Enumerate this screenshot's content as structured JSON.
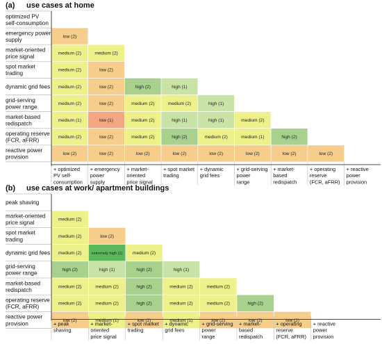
{
  "colors": {
    "extremely high": "#5cb85c",
    "high": "#a8d18d",
    "high-light": "#c9e3a6",
    "medium": "#eef08a",
    "low": "#f7cd8c",
    "low-red": "#f4a582",
    "grid": "#bbbbbb",
    "axis": "#333333"
  },
  "chart_data": [
    {
      "type": "table",
      "panel": "(a)",
      "title": "use cases at home",
      "rows": [
        "optimized PV\nself-consumption",
        "emergency power\nsupply",
        "market-oriented\nprice signal",
        "spot market\ntrading",
        "dynamic grid fees",
        "grid-serving\npower range",
        "market-based\nredispatch",
        "operating reserve\n(FCR, aFRR)",
        "reactive power\nprovision"
      ],
      "columns": [
        "+ optimized\nPV self-\nconsumption",
        "+ emergency\npower\nsupply",
        "+ market-\noriented\nprice signal",
        "+ spot market\ntrading",
        "+ dynamic\ngrid fees",
        "+ grid-serving\npower\nrange",
        "+ market-\nbased\nredispatch",
        "+ operating\nreserve\n(FCR, aFRR)",
        "+ reactive\npower\nprovision"
      ],
      "cells": [
        [],
        [
          {
            "label": "low (2)",
            "level": "low"
          }
        ],
        [
          {
            "label": "medium (2)",
            "level": "medium"
          },
          {
            "label": "medium (2)",
            "level": "medium"
          }
        ],
        [
          {
            "label": "medium (2)",
            "level": "medium"
          },
          {
            "label": "low (2)",
            "level": "low"
          }
        ],
        [
          {
            "label": "medium (2)",
            "level": "medium"
          },
          {
            "label": "low (2)",
            "level": "low"
          },
          {
            "label": "high (2)",
            "level": "high"
          },
          {
            "label": "high (1)",
            "level": "high-light"
          }
        ],
        [
          {
            "label": "medium (2)",
            "level": "medium"
          },
          {
            "label": "low (2)",
            "level": "low"
          },
          {
            "label": "medium (2)",
            "level": "medium"
          },
          {
            "label": "medium (2)",
            "level": "medium"
          },
          {
            "label": "high (1)",
            "level": "high-light"
          }
        ],
        [
          {
            "label": "medium (1)",
            "level": "medium"
          },
          {
            "label": "low (1)",
            "level": "low-red"
          },
          {
            "label": "medium (2)",
            "level": "medium"
          },
          {
            "label": "high (1)",
            "level": "high-light"
          },
          {
            "label": "high (1)",
            "level": "high-light"
          },
          {
            "label": "medium (2)",
            "level": "medium"
          }
        ],
        [
          {
            "label": "medium (2)",
            "level": "medium"
          },
          {
            "label": "low (2)",
            "level": "low"
          },
          {
            "label": "medium (2)",
            "level": "medium"
          },
          {
            "label": "high (2)",
            "level": "high"
          },
          {
            "label": "medium (2)",
            "level": "medium"
          },
          {
            "label": "medium (1)",
            "level": "medium"
          },
          {
            "label": "high (2)",
            "level": "high"
          }
        ],
        [
          {
            "label": "low (2)",
            "level": "low"
          },
          {
            "label": "low (2)",
            "level": "low"
          },
          {
            "label": "low (2)",
            "level": "low"
          },
          {
            "label": "low (2)",
            "level": "low"
          },
          {
            "label": "low (2)",
            "level": "low"
          },
          {
            "label": "low (2)",
            "level": "low"
          },
          {
            "label": "low (2)",
            "level": "low"
          },
          {
            "label": "low (2)",
            "level": "low"
          }
        ]
      ]
    },
    {
      "type": "table",
      "panel": "(b)",
      "title": "use cases at work/ apartment buildings",
      "rows": [
        "peak shaving",
        "market-oriented\nprice signal",
        "spot market\ntrading",
        "dynamic grid fees",
        "grid-serving\npower range",
        "market-based\nredispatch",
        "operating reserve\n(FCR, aFRR)",
        "reactive power\nprovision"
      ],
      "columns": [
        "+ peak\nshaving",
        "+ market-\noriented\nprice signal",
        "+ spot market\ntrading",
        "+ dynamic\ngrid fees",
        "+ grid-serving\npower\nrange",
        "+ market-\nbased\nredispatch",
        "+ operating\nreserve\n(FCR, aFRR)",
        "+ reactive\npower\nprovision"
      ],
      "cells": [
        [],
        [
          {
            "label": "medium (2)",
            "level": "medium"
          }
        ],
        [
          {
            "label": "medium (2)",
            "level": "medium"
          },
          {
            "label": "low (2)",
            "level": "low"
          }
        ],
        [
          {
            "label": "medium (2)",
            "level": "medium"
          },
          {
            "label": "extremely high (1)",
            "level": "extremely high"
          },
          {
            "label": "medium (2)",
            "level": "medium"
          }
        ],
        [
          {
            "label": "high (2)",
            "level": "high"
          },
          {
            "label": "high (1)",
            "level": "high-light"
          },
          {
            "label": "high (2)",
            "level": "high"
          },
          {
            "label": "high (1)",
            "level": "high-light"
          }
        ],
        [
          {
            "label": "medium (2)",
            "level": "medium"
          },
          {
            "label": "medium (2)",
            "level": "medium"
          },
          {
            "label": "high (2)",
            "level": "high"
          },
          {
            "label": "medium (2)",
            "level": "medium"
          },
          {
            "label": "medium (2)",
            "level": "medium"
          }
        ],
        [
          {
            "label": "medium (2)",
            "level": "medium"
          },
          {
            "label": "medium (2)",
            "level": "medium"
          },
          {
            "label": "high (2)",
            "level": "high"
          },
          {
            "label": "medium (2)",
            "level": "medium"
          },
          {
            "label": "medium (2)",
            "level": "medium"
          },
          {
            "label": "high (2)",
            "level": "high"
          }
        ],
        [
          {
            "label": "low (2)",
            "level": "low"
          },
          {
            "label": "medium (1)",
            "level": "medium"
          },
          {
            "label": "low (2)",
            "level": "low"
          },
          {
            "label": "medium (1)",
            "level": "medium"
          },
          {
            "label": "low (2)",
            "level": "low"
          },
          {
            "label": "low (2)",
            "level": "low"
          },
          {
            "label": "low (2)",
            "level": "low"
          }
        ]
      ]
    }
  ]
}
